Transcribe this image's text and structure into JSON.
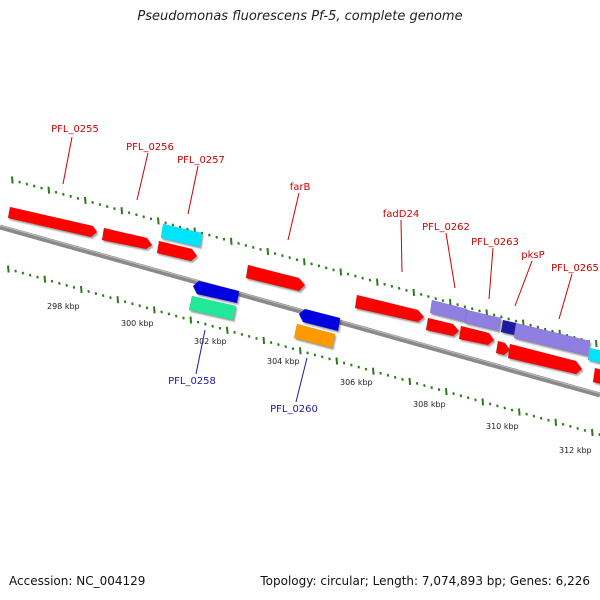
{
  "header": {
    "title": "Pseudomonas fluorescens Pf-5, complete genome"
  },
  "footer": {
    "accession": "Accession: NC_004129",
    "summary": "Topology: circular; Length: 7,074,893 bp; Genes: 6,226"
  },
  "colors": {
    "backbone": "#7a7a7a",
    "tick": "#2a7a1a",
    "label_top": "#cc0000",
    "label_bottom": "#1a1aa0"
  },
  "genome_map": {
    "kbp_ticks": [
      "298 kbp",
      "300 kbp",
      "302 kbp",
      "304 kbp",
      "306 kbp",
      "308 kbp",
      "310 kbp",
      "312 kbp"
    ],
    "features": [
      {
        "id": "f1",
        "color": "#ff0000",
        "strand": "+",
        "label": "PFL_0255"
      },
      {
        "id": "f2",
        "color": "#ff0000",
        "strand": "+",
        "label": "PFL_0256"
      },
      {
        "id": "f3",
        "color": "#00e5ff",
        "strand": "+",
        "label": ""
      },
      {
        "id": "f4",
        "color": "#ff0000",
        "strand": "+",
        "label": "PFL_0257"
      },
      {
        "id": "f5",
        "color": "#ff0000",
        "strand": "+",
        "label": "farB"
      },
      {
        "id": "f6",
        "color": "#ff0000",
        "strand": "+",
        "label": "fadD24"
      },
      {
        "id": "f7",
        "color": "#8f7fe0",
        "strand": "+",
        "label": "PFL_0262"
      },
      {
        "id": "f8",
        "color": "#ff0000",
        "strand": "+",
        "label": ""
      },
      {
        "id": "f9",
        "color": "#8f7fe0",
        "strand": "+",
        "label": "PFL_0263"
      },
      {
        "id": "f10",
        "color": "#ff0000",
        "strand": "+",
        "label": ""
      },
      {
        "id": "f11",
        "color": "#1a1aa0",
        "strand": "+",
        "label": ""
      },
      {
        "id": "f12",
        "color": "#8f7fe0",
        "strand": "+",
        "label": "pksP"
      },
      {
        "id": "f13",
        "color": "#ff0000",
        "strand": "+",
        "label": ""
      },
      {
        "id": "f14",
        "color": "#ff0000",
        "strand": "+",
        "label": ""
      },
      {
        "id": "f15",
        "color": "#00e5ff",
        "strand": "+",
        "label": "PFL_0265"
      },
      {
        "id": "f16",
        "color": "#ff0000",
        "strand": "+",
        "label": ""
      },
      {
        "id": "f17",
        "color": "#0000e0",
        "strand": "-",
        "label": ""
      },
      {
        "id": "f18",
        "color": "#22e89a",
        "strand": "-",
        "label": "PFL_0258"
      },
      {
        "id": "f19",
        "color": "#0000e0",
        "strand": "-",
        "label": ""
      },
      {
        "id": "f20",
        "color": "#ff9900",
        "strand": "-",
        "label": "PFL_0260"
      }
    ]
  }
}
